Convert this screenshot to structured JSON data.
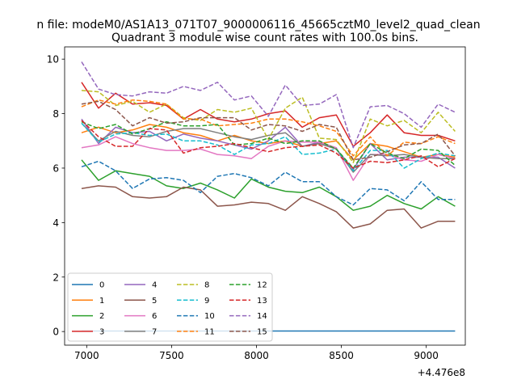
{
  "chart_data": {
    "type": "line",
    "suptitle": "n file: modeM0/AS1A13_071T07_9000006116_45665cztM0_level2_quad_clean",
    "title": "Quadrant 3 module wise count rates with 100.0s bins.",
    "xlabel": "",
    "ylabel": "",
    "x_offset_label": "+4.476e8",
    "xlim": [
      6870,
      9230
    ],
    "ylim": [
      -0.5,
      10.45
    ],
    "x_ticks": [
      7000,
      7500,
      8000,
      8500,
      9000
    ],
    "y_ticks": [
      0,
      2,
      4,
      6,
      8,
      10
    ],
    "grid": false,
    "legend_position": "lower-left",
    "legend_ncol": 4,
    "x": [
      6970,
      7070,
      7170,
      7270,
      7370,
      7470,
      7570,
      7670,
      7770,
      7870,
      7970,
      8070,
      8170,
      8270,
      8370,
      8470,
      8570,
      8670,
      8770,
      8870,
      8970,
      9070,
      9170
    ],
    "series": [
      {
        "name": "0",
        "color": "#1f77b4",
        "dash": "solid",
        "values": [
          0.02,
          0.02,
          0.02,
          0.02,
          0.02,
          0.02,
          0.02,
          0.02,
          0.02,
          0.02,
          0.02,
          0.02,
          0.02,
          0.02,
          0.02,
          0.02,
          0.02,
          0.02,
          0.02,
          0.02,
          0.02,
          0.02,
          0.02
        ]
      },
      {
        "name": "1",
        "color": "#ff7f0e",
        "dash": "solid",
        "values": [
          7.3,
          7.5,
          7.3,
          7.4,
          7.6,
          7.5,
          7.3,
          7.2,
          7.0,
          7.2,
          7.0,
          6.9,
          7.0,
          6.8,
          6.9,
          7.0,
          6.3,
          6.9,
          6.8,
          6.6,
          6.4,
          6.5,
          6.4
        ]
      },
      {
        "name": "2",
        "color": "#2ca02c",
        "dash": "solid",
        "values": [
          6.3,
          5.55,
          5.9,
          5.8,
          5.7,
          5.35,
          5.25,
          5.45,
          5.2,
          4.9,
          5.6,
          5.3,
          5.15,
          5.1,
          5.3,
          4.95,
          4.45,
          4.6,
          5.0,
          4.7,
          4.5,
          4.95,
          4.6
        ]
      },
      {
        "name": "3",
        "color": "#d62728",
        "dash": "solid",
        "values": [
          9.15,
          8.2,
          8.75,
          8.35,
          8.4,
          8.3,
          7.8,
          8.15,
          7.8,
          7.7,
          7.8,
          8.0,
          8.1,
          7.5,
          7.85,
          7.95,
          6.8,
          7.3,
          7.95,
          7.3,
          7.2,
          7.2,
          7.0
        ]
      },
      {
        "name": "4",
        "color": "#9467bd",
        "dash": "solid",
        "values": [
          7.8,
          6.9,
          7.5,
          7.3,
          7.35,
          7.0,
          7.25,
          7.1,
          7.0,
          6.85,
          6.7,
          7.0,
          7.5,
          6.8,
          6.95,
          6.7,
          5.95,
          6.9,
          6.3,
          6.4,
          6.4,
          6.4,
          6.0
        ]
      },
      {
        "name": "5",
        "color": "#8c564b",
        "dash": "solid",
        "values": [
          5.25,
          5.35,
          5.3,
          4.95,
          4.9,
          4.95,
          5.3,
          5.2,
          4.6,
          4.65,
          4.75,
          4.7,
          4.45,
          4.95,
          4.7,
          4.4,
          3.8,
          3.95,
          4.45,
          4.5,
          3.8,
          4.05,
          4.05
        ]
      },
      {
        "name": "6",
        "color": "#e377c2",
        "dash": "solid",
        "values": [
          6.75,
          6.85,
          7.15,
          6.9,
          6.75,
          6.65,
          6.65,
          6.7,
          6.5,
          6.45,
          6.35,
          6.8,
          7.0,
          6.95,
          6.95,
          6.75,
          5.55,
          6.5,
          6.5,
          6.3,
          6.25,
          6.5,
          6.35
        ]
      },
      {
        "name": "7",
        "color": "#7f7f7f",
        "dash": "solid",
        "values": [
          7.65,
          7.0,
          7.35,
          7.2,
          7.15,
          7.35,
          7.45,
          7.45,
          7.3,
          7.15,
          7.05,
          7.2,
          7.3,
          6.8,
          6.9,
          6.7,
          5.85,
          6.5,
          6.45,
          6.5,
          6.4,
          6.35,
          6.35
        ]
      },
      {
        "name": "8",
        "color": "#bcbd22",
        "dash": "dashed",
        "values": [
          8.85,
          8.8,
          8.3,
          8.45,
          8.05,
          8.35,
          7.85,
          7.75,
          8.15,
          8.05,
          8.2,
          7.05,
          8.2,
          8.6,
          7.1,
          7.05,
          6.2,
          7.8,
          7.55,
          7.75,
          7.3,
          8.05,
          7.35
        ]
      },
      {
        "name": "9",
        "color": "#17becf",
        "dash": "dashed",
        "values": [
          7.65,
          6.95,
          7.25,
          7.3,
          7.2,
          7.25,
          7.0,
          7.0,
          6.85,
          6.5,
          6.85,
          6.9,
          7.15,
          6.5,
          6.55,
          6.7,
          5.9,
          6.65,
          6.65,
          6.0,
          6.35,
          6.55,
          6.45
        ]
      },
      {
        "name": "10",
        "color": "#1f77b4",
        "dash": "dashed",
        "values": [
          6.05,
          6.25,
          5.9,
          5.25,
          5.6,
          5.65,
          5.55,
          5.1,
          5.7,
          5.8,
          5.65,
          5.35,
          5.85,
          5.5,
          5.5,
          4.95,
          4.65,
          5.25,
          5.2,
          4.8,
          5.5,
          4.85,
          4.85
        ]
      },
      {
        "name": "11",
        "color": "#ff7f0e",
        "dash": "dashed",
        "values": [
          8.25,
          8.5,
          8.35,
          8.5,
          8.45,
          8.35,
          7.8,
          7.8,
          7.55,
          7.6,
          7.65,
          7.8,
          7.8,
          7.7,
          7.55,
          7.35,
          6.45,
          7.15,
          6.45,
          6.95,
          6.9,
          7.15,
          6.9
        ]
      },
      {
        "name": "12",
        "color": "#2ca02c",
        "dash": "dashed",
        "values": [
          7.7,
          7.45,
          7.6,
          7.25,
          7.45,
          7.7,
          7.55,
          7.55,
          7.6,
          6.85,
          6.9,
          7.1,
          6.9,
          7.0,
          7.0,
          6.7,
          6.0,
          6.9,
          6.55,
          6.35,
          6.7,
          6.65,
          6.1
        ]
      },
      {
        "name": "13",
        "color": "#d62728",
        "dash": "dashed",
        "values": [
          7.75,
          7.15,
          6.8,
          6.8,
          7.45,
          7.4,
          6.55,
          6.75,
          6.8,
          6.9,
          6.75,
          6.6,
          6.75,
          6.8,
          6.85,
          6.55,
          6.0,
          6.25,
          6.2,
          6.3,
          6.45,
          6.05,
          6.35
        ]
      },
      {
        "name": "14",
        "color": "#9467bd",
        "dash": "dashed",
        "values": [
          9.9,
          8.9,
          8.7,
          8.65,
          8.8,
          8.75,
          9.0,
          8.85,
          9.15,
          8.5,
          8.65,
          7.9,
          9.05,
          8.3,
          8.35,
          8.7,
          6.75,
          8.25,
          8.3,
          8.0,
          7.5,
          8.35,
          8.05
        ]
      },
      {
        "name": "15",
        "color": "#8c564b",
        "dash": "dashed",
        "values": [
          8.35,
          8.45,
          8.15,
          7.55,
          7.85,
          7.65,
          7.7,
          7.85,
          7.85,
          7.85,
          7.4,
          7.6,
          7.55,
          7.35,
          7.6,
          7.5,
          6.3,
          6.4,
          6.6,
          6.85,
          6.9,
          7.25,
          6.45
        ]
      }
    ]
  }
}
